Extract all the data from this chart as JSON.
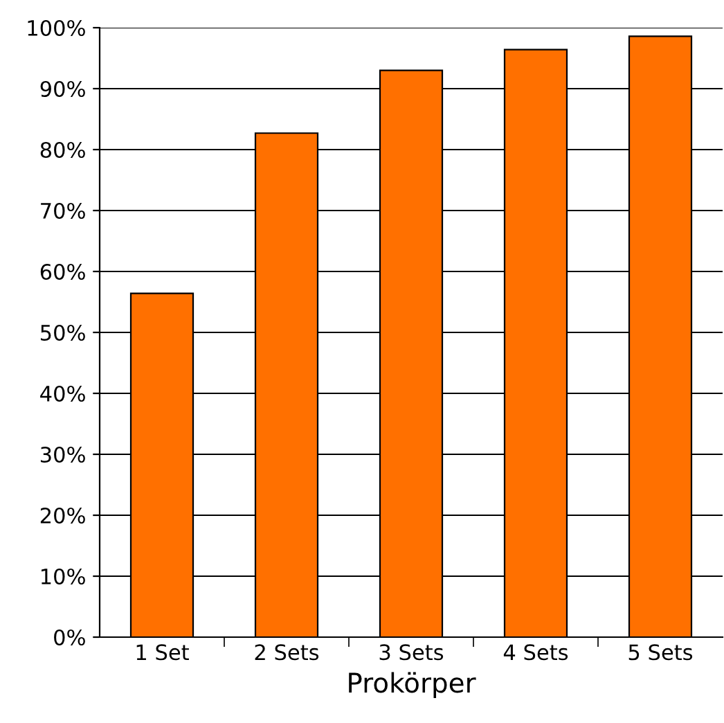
{
  "chart_data": {
    "type": "bar",
    "xlabel": "Prokörper",
    "categories": [
      "1 Set",
      "2 Sets",
      "3 Sets",
      "4 Sets",
      "5 Sets"
    ],
    "values": [
      56.4,
      82.7,
      93.0,
      96.4,
      98.6
    ],
    "color": "#ff7000",
    "ylim": [
      0,
      100
    ],
    "yticks": [
      {
        "value": 0,
        "label": "0%"
      },
      {
        "value": 10,
        "label": "10%"
      },
      {
        "value": 20,
        "label": "20%"
      },
      {
        "value": 30,
        "label": "30%"
      },
      {
        "value": 40,
        "label": "40%"
      },
      {
        "value": 50,
        "label": "50%"
      },
      {
        "value": 60,
        "label": "60%"
      },
      {
        "value": 70,
        "label": "70%"
      },
      {
        "value": 80,
        "label": "80%"
      },
      {
        "value": 90,
        "label": "90%"
      },
      {
        "value": 100,
        "label": "100%"
      }
    ],
    "grid": "y"
  }
}
